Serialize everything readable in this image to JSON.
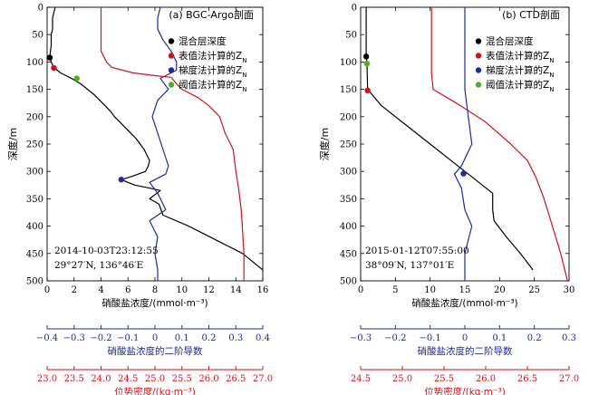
{
  "chart_data": [
    {
      "type": "line",
      "panel_label": "(a) BGC-Argo剖面",
      "ylabel": "深度/m",
      "y_ticks": [
        0,
        50,
        100,
        150,
        200,
        250,
        300,
        350,
        400,
        450,
        500
      ],
      "ylim": [
        0,
        500
      ],
      "y_inverted": true,
      "station_time": "2014-10-03T23:12:55",
      "station_position": "29°27′N, 136°46′E",
      "axes": {
        "nitrate": {
          "label": "硝酸盐浓度/(mmol·m⁻³)",
          "range": [
            0,
            16
          ],
          "ticks": [
            0,
            2,
            4,
            6,
            8,
            10,
            12,
            14,
            16
          ],
          "color": "#000000"
        },
        "derivative": {
          "label": "硝酸盐浓度的二阶导数",
          "range": [
            -0.4,
            0.4
          ],
          "ticks": [
            "−0.4",
            "−0.3",
            "−0.2",
            "−0.1",
            "0",
            "0.1",
            "0.2",
            "0.3",
            "0.4"
          ],
          "color": "#1f2a9c"
        },
        "density": {
          "label": "位势密度/(kg·m⁻³)",
          "range": [
            23.0,
            27.0
          ],
          "ticks": [
            "23.0",
            "23.5",
            "24.0",
            "24.5",
            "25.0",
            "25.5",
            "26.0",
            "26.5",
            "27.0"
          ],
          "color": "#d0121b"
        }
      },
      "legend": [
        {
          "label": "混合层深度",
          "color": "#000000"
        },
        {
          "label": "表值法计算的Z",
          "subscript": "N",
          "color": "#d0121b"
        },
        {
          "label": "梯度法计算的Z",
          "subscript": "N",
          "color": "#1f2a9c"
        },
        {
          "label": "阈值法计算的Z",
          "subscript": "N",
          "color": "#4caf2a"
        }
      ],
      "series": [
        {
          "axis": "nitrate",
          "color": "#000000",
          "points": [
            [
              0.6,
              0
            ],
            [
              0.5,
              10
            ],
            [
              0.4,
              20
            ],
            [
              0.4,
              30
            ],
            [
              0.4,
              40
            ],
            [
              0.3,
              50
            ],
            [
              0.3,
              60
            ],
            [
              0.3,
              70
            ],
            [
              0.25,
              80
            ],
            [
              0.2,
              90
            ],
            [
              0.3,
              100
            ],
            [
              0.5,
              110
            ],
            [
              1.0,
              120
            ],
            [
              1.8,
              130
            ],
            [
              2.5,
              140
            ],
            [
              3.0,
              150
            ],
            [
              3.5,
              160
            ],
            [
              3.9,
              170
            ],
            [
              4.3,
              180
            ],
            [
              4.7,
              190
            ],
            [
              5.0,
              200
            ],
            [
              5.4,
              210
            ],
            [
              5.8,
              220
            ],
            [
              6.2,
              230
            ],
            [
              6.6,
              240
            ],
            [
              6.9,
              250
            ],
            [
              7.2,
              260
            ],
            [
              7.4,
              270
            ],
            [
              7.6,
              280
            ],
            [
              7.5,
              290
            ],
            [
              7.3,
              300
            ],
            [
              6.2,
              310
            ],
            [
              5.5,
              315
            ],
            [
              6.5,
              325
            ],
            [
              7.5,
              330
            ],
            [
              8.4,
              335
            ],
            [
              7.6,
              350
            ],
            [
              8.3,
              360
            ],
            [
              8.6,
              380
            ],
            [
              10.5,
              400
            ],
            [
              12.5,
              425
            ],
            [
              14.5,
              450
            ],
            [
              16,
              480
            ]
          ]
        },
        {
          "axis": "derivative",
          "color": "#1f2a9c",
          "points": [
            [
              0.02,
              0
            ],
            [
              0.01,
              20
            ],
            [
              0.01,
              40
            ],
            [
              0.03,
              60
            ],
            [
              0.06,
              80
            ],
            [
              0.08,
              100
            ],
            [
              0.08,
              115
            ],
            [
              0.02,
              130
            ],
            [
              0.05,
              150
            ],
            [
              0.01,
              170
            ],
            [
              -0.01,
              200
            ],
            [
              0.01,
              230
            ],
            [
              0.03,
              260
            ],
            [
              0.05,
              290
            ],
            [
              0.04,
              305
            ],
            [
              -0.02,
              320
            ],
            [
              0.01,
              340
            ],
            [
              0.04,
              370
            ],
            [
              -0.02,
              390
            ],
            [
              0.01,
              420
            ],
            [
              0,
              450
            ],
            [
              0.01,
              480
            ],
            [
              0.01,
              500
            ]
          ]
        },
        {
          "axis": "density",
          "color": "#d0121b",
          "points": [
            [
              24.0,
              0
            ],
            [
              24.0,
              20
            ],
            [
              24.0,
              40
            ],
            [
              24.0,
              60
            ],
            [
              24.0,
              80
            ],
            [
              24.1,
              100
            ],
            [
              24.2,
              110
            ],
            [
              24.6,
              120
            ],
            [
              25.0,
              125
            ],
            [
              25.3,
              128
            ],
            [
              25.4,
              140
            ],
            [
              25.5,
              150
            ],
            [
              25.8,
              165
            ],
            [
              26.0,
              180
            ],
            [
              26.2,
              200
            ],
            [
              26.3,
              230
            ],
            [
              26.45,
              260
            ],
            [
              26.5,
              300
            ],
            [
              26.55,
              330
            ],
            [
              26.6,
              370
            ],
            [
              26.62,
              400
            ],
            [
              26.65,
              450
            ],
            [
              26.65,
              500
            ]
          ]
        }
      ],
      "markers": [
        {
          "nitrate": 0.2,
          "depth": 92,
          "color": "#000000"
        },
        {
          "nitrate": 0.5,
          "depth": 111,
          "color": "#d0121b"
        },
        {
          "nitrate": 5.5,
          "depth": 315,
          "color": "#1f2a9c"
        },
        {
          "nitrate": 2.2,
          "depth": 130,
          "color": "#4caf2a"
        }
      ]
    },
    {
      "type": "line",
      "panel_label": "(b) CTD剖面",
      "ylabel": "深度/m",
      "y_ticks": [
        0,
        50,
        100,
        150,
        200,
        250,
        300,
        350,
        400,
        450,
        500
      ],
      "ylim": [
        0,
        500
      ],
      "y_inverted": true,
      "station_time": "2015-01-12T07:55:00",
      "station_position": "38°09′N, 137°01′E",
      "axes": {
        "nitrate": {
          "label": "硝酸盐浓度/(mmol·m⁻³)",
          "range": [
            0,
            30
          ],
          "ticks": [
            0,
            5,
            10,
            15,
            20,
            25,
            30
          ],
          "color": "#000000"
        },
        "derivative": {
          "label": "硝酸盐浓度的二阶导数",
          "range": [
            -0.3,
            0.3
          ],
          "ticks": [
            "−0.3",
            "−0.2",
            "−0.1",
            "0",
            "0.1",
            "0.2",
            "0.3"
          ],
          "color": "#1f2a9c"
        },
        "density": {
          "label": "位势密度/(kg·m⁻³)",
          "range": [
            24.5,
            27.0
          ],
          "ticks": [
            "24.5",
            "25.0",
            "25.5",
            "26.0",
            "26.5",
            "27.0"
          ],
          "color": "#d0121b"
        }
      },
      "legend": [
        {
          "label": "混合层深度",
          "color": "#000000"
        },
        {
          "label": "表值法计算的Z",
          "subscript": "N",
          "color": "#d0121b"
        },
        {
          "label": "梯度法计算的Z",
          "subscript": "N",
          "color": "#1f2a9c"
        },
        {
          "label": "阈值法计算的Z",
          "subscript": "N",
          "color": "#4caf2a"
        }
      ],
      "series": [
        {
          "axis": "nitrate",
          "color": "#000000",
          "points": [
            [
              0.8,
              0
            ],
            [
              0.8,
              20
            ],
            [
              0.8,
              40
            ],
            [
              0.8,
              60
            ],
            [
              0.8,
              80
            ],
            [
              0.8,
              90
            ],
            [
              0.9,
              100
            ],
            [
              1.0,
              150
            ],
            [
              3.0,
              180
            ],
            [
              7.0,
              220
            ],
            [
              11.0,
              260
            ],
            [
              14.0,
              290
            ],
            [
              16.0,
              310
            ],
            [
              18.0,
              330
            ],
            [
              19.0,
              340
            ],
            [
              19.0,
              370
            ],
            [
              19.2,
              390
            ],
            [
              21.0,
              420
            ],
            [
              23.0,
              450
            ],
            [
              24.8,
              480
            ]
          ]
        },
        {
          "axis": "derivative",
          "color": "#1f2a9c",
          "points": [
            [
              0.0,
              0
            ],
            [
              0.0,
              50
            ],
            [
              0.0,
              100
            ],
            [
              0.0,
              150
            ],
            [
              0.01,
              200
            ],
            [
              0.02,
              250
            ],
            [
              -0.01,
              290
            ],
            [
              -0.03,
              305
            ],
            [
              -0.01,
              330
            ],
            [
              0.0,
              370
            ],
            [
              0.02,
              400
            ],
            [
              0.0,
              450
            ],
            [
              0.0,
              500
            ]
          ]
        },
        {
          "axis": "density",
          "color": "#d0121b",
          "points": [
            [
              25.35,
              0
            ],
            [
              25.35,
              30
            ],
            [
              25.35,
              60
            ],
            [
              25.35,
              90
            ],
            [
              25.35,
              120
            ],
            [
              25.37,
              150
            ],
            [
              25.7,
              180
            ],
            [
              26.0,
              210
            ],
            [
              26.3,
              250
            ],
            [
              26.5,
              280
            ],
            [
              26.6,
              310
            ],
            [
              26.7,
              350
            ],
            [
              26.8,
              400
            ],
            [
              26.9,
              450
            ],
            [
              26.98,
              500
            ]
          ]
        }
      ],
      "markers": [
        {
          "nitrate": 0.8,
          "depth": 90,
          "color": "#000000"
        },
        {
          "nitrate": 1.0,
          "depth": 152,
          "color": "#d0121b"
        },
        {
          "nitrate": 14.8,
          "depth": 304,
          "color": "#1f2a9c"
        },
        {
          "nitrate": 0.9,
          "depth": 103,
          "color": "#4caf2a"
        }
      ]
    }
  ]
}
